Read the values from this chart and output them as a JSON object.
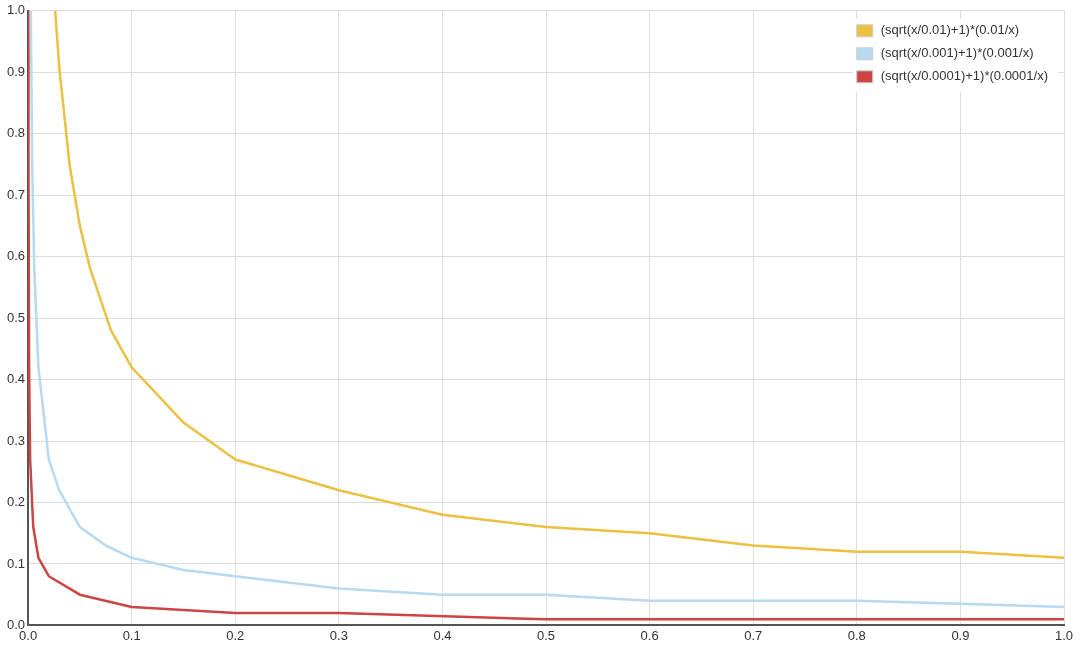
{
  "chart_data": {
    "type": "line",
    "marker": "none",
    "line_style": "solid",
    "grid": true,
    "legend": "top right",
    "xlim": [
      0,
      1
    ],
    "ylim": [
      0,
      1
    ],
    "xticks": [
      {
        "value": 0,
        "label": "0.0"
      },
      0.1,
      0.2,
      0.3,
      0.4,
      0.5,
      0.6,
      0.7,
      0.8,
      0.9,
      {
        "value": 1,
        "label": "1.0"
      }
    ],
    "yticks": [
      {
        "value": 0,
        "label": "0.0"
      },
      0.1,
      0.2,
      0.3,
      0.4,
      0.5,
      0.6,
      0.7,
      0.8,
      0.9,
      {
        "value": 1,
        "label": "1.0"
      }
    ],
    "series": [
      {
        "name": "(sqrt(x/0.01)+1)*(0.01/x)",
        "color": "#ecc042",
        "x": [
          0.0262,
          0.03,
          0.04,
          0.05,
          0.06,
          0.08,
          0.1,
          0.15,
          0.2,
          0.3,
          0.4,
          0.5,
          0.6,
          0.7,
          0.8,
          0.9,
          1.0
        ],
        "values": [
          1.0,
          0.91,
          0.75,
          0.65,
          0.58,
          0.48,
          0.42,
          0.33,
          0.27,
          0.22,
          0.18,
          0.16,
          0.15,
          0.13,
          0.12,
          0.12,
          0.11
        ]
      },
      {
        "name": "(sqrt(x/0.001)+1)*(0.001/x)",
        "color": "#b7d9f2",
        "x": [
          0.00262,
          0.004,
          0.006,
          0.01,
          0.02,
          0.03,
          0.05,
          0.075,
          0.1,
          0.15,
          0.2,
          0.3,
          0.4,
          0.5,
          0.6,
          0.8,
          1.0
        ],
        "values": [
          1.0,
          0.75,
          0.58,
          0.42,
          0.27,
          0.22,
          0.16,
          0.13,
          0.11,
          0.09,
          0.08,
          0.06,
          0.05,
          0.05,
          0.04,
          0.04,
          0.03
        ]
      },
      {
        "name": "(sqrt(x/0.0001)+1)*(0.0001/x)",
        "color": "#cc4444",
        "x": [
          0.000262,
          0.0004,
          0.001,
          0.002,
          0.005,
          0.01,
          0.02,
          0.05,
          0.1,
          0.2,
          0.3,
          0.5,
          0.7,
          1.0
        ],
        "values": [
          1.0,
          0.75,
          0.42,
          0.27,
          0.16,
          0.11,
          0.08,
          0.05,
          0.03,
          0.02,
          0.02,
          0.01,
          0.01,
          0.01
        ]
      }
    ]
  }
}
